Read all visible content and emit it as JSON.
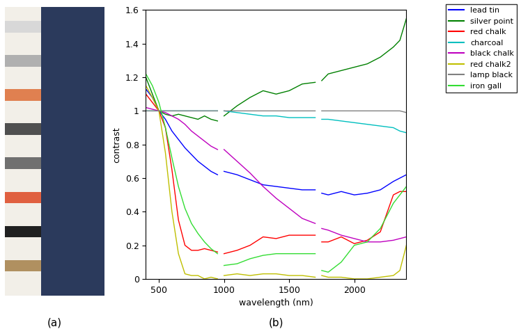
{
  "chart_data": {
    "type": "line",
    "xlabel": "wavelength (nm)",
    "ylabel": "contrast",
    "x": [
      400,
      450,
      500,
      550,
      600,
      650,
      700,
      750,
      800,
      850,
      900,
      950,
      975,
      1000,
      1100,
      1200,
      1300,
      1400,
      1500,
      1600,
      1700,
      1725,
      1750,
      1800,
      1900,
      2000,
      2100,
      2200,
      2300,
      2350,
      2400
    ],
    "xlim": [
      400,
      2400
    ],
    "xticks": [
      500,
      1000,
      1500,
      2000
    ],
    "ylim": [
      0,
      1.6
    ],
    "yticks": [
      0,
      0.2,
      0.4,
      0.6,
      0.8,
      1,
      1.2,
      1.4,
      1.6
    ],
    "legend": "upper right",
    "series": [
      {
        "name": "lead tin",
        "color": "#0000ff",
        "values": [
          1.13,
          1.08,
          1.0,
          0.95,
          0.88,
          0.83,
          0.78,
          0.74,
          0.7,
          0.67,
          0.64,
          0.62,
          null,
          0.64,
          0.62,
          0.59,
          0.56,
          0.55,
          0.54,
          0.53,
          0.53,
          null,
          0.51,
          0.5,
          0.52,
          0.5,
          0.51,
          0.53,
          0.58,
          0.6,
          0.62
        ]
      },
      {
        "name": "silver point",
        "color": "#008000",
        "values": [
          1.2,
          1.1,
          1.0,
          0.98,
          0.97,
          0.98,
          0.97,
          0.96,
          0.95,
          0.97,
          0.95,
          0.94,
          null,
          0.97,
          1.03,
          1.08,
          1.12,
          1.1,
          1.12,
          1.16,
          1.17,
          null,
          1.18,
          1.22,
          1.24,
          1.26,
          1.28,
          1.32,
          1.38,
          1.42,
          1.55
        ]
      },
      {
        "name": "red chalk",
        "color": "#ff0000",
        "values": [
          1.1,
          1.05,
          1.0,
          0.9,
          0.65,
          0.35,
          0.2,
          0.17,
          0.17,
          0.18,
          0.17,
          0.16,
          null,
          0.15,
          0.17,
          0.2,
          0.25,
          0.24,
          0.26,
          0.26,
          0.26,
          null,
          0.22,
          0.22,
          0.25,
          0.21,
          0.23,
          0.28,
          0.5,
          0.52,
          0.52
        ]
      },
      {
        "name": "charcoal",
        "color": "#00bfbf",
        "values": [
          1.0,
          1.0,
          1.0,
          1.0,
          1.0,
          1.0,
          1.0,
          1.0,
          1.0,
          1.0,
          1.0,
          1.0,
          null,
          1.0,
          0.99,
          0.98,
          0.97,
          0.97,
          0.96,
          0.96,
          0.96,
          null,
          0.95,
          0.95,
          0.94,
          0.93,
          0.92,
          0.91,
          0.9,
          0.88,
          0.87
        ]
      },
      {
        "name": "black chalk",
        "color": "#bf00bf",
        "values": [
          1.02,
          1.01,
          1.0,
          0.99,
          0.97,
          0.95,
          0.92,
          0.88,
          0.85,
          0.82,
          0.79,
          0.77,
          null,
          0.77,
          0.7,
          0.63,
          0.55,
          0.48,
          0.42,
          0.36,
          0.33,
          null,
          0.3,
          0.29,
          0.26,
          0.24,
          0.22,
          0.22,
          0.23,
          0.24,
          0.25
        ]
      },
      {
        "name": "red chalk2",
        "color": "#bfbf00",
        "values": [
          1.15,
          1.08,
          1.0,
          0.75,
          0.4,
          0.15,
          0.03,
          0.02,
          0.02,
          0.0,
          0.01,
          0.0,
          null,
          0.02,
          0.03,
          0.02,
          0.03,
          0.03,
          0.02,
          0.02,
          0.01,
          null,
          0.02,
          0.01,
          0.01,
          0.0,
          0.0,
          0.01,
          0.02,
          0.05,
          0.2
        ]
      },
      {
        "name": "lamp black",
        "color": "#808080",
        "values": [
          1.0,
          1.0,
          1.0,
          1.0,
          1.0,
          1.0,
          1.0,
          1.0,
          1.0,
          1.0,
          1.0,
          1.0,
          null,
          1.0,
          1.0,
          1.0,
          1.0,
          1.0,
          1.0,
          1.0,
          1.0,
          null,
          1.0,
          1.0,
          1.0,
          1.0,
          1.0,
          1.0,
          1.0,
          1.0,
          0.99
        ]
      },
      {
        "name": "iron gall",
        "color": "#33dd33",
        "values": [
          1.22,
          1.15,
          1.05,
          0.9,
          0.72,
          0.55,
          0.42,
          0.33,
          0.27,
          0.22,
          0.18,
          0.15,
          null,
          0.08,
          0.09,
          0.12,
          0.14,
          0.15,
          0.15,
          0.15,
          0.15,
          null,
          0.05,
          0.04,
          0.1,
          0.2,
          0.22,
          0.3,
          0.45,
          0.5,
          0.55
        ]
      }
    ]
  },
  "figure": {
    "labels": [
      "(a)",
      "(b)"
    ]
  }
}
